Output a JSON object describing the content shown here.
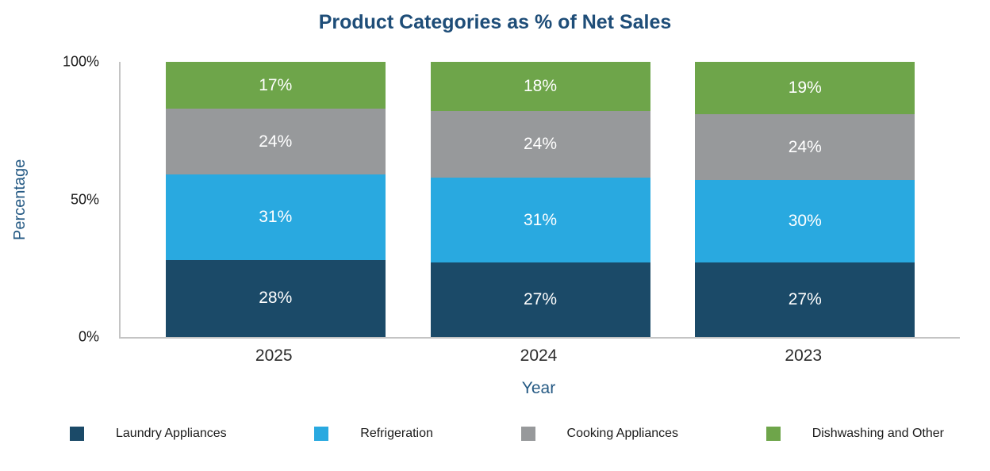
{
  "chart_data": {
    "type": "bar",
    "stacked": true,
    "title": "Product Categories as % of Net Sales",
    "xlabel": "Year",
    "ylabel": "Percentage",
    "categories": [
      "2025",
      "2024",
      "2023"
    ],
    "series": [
      {
        "name": "Laundry Appliances",
        "color": "#1b4a68",
        "values": [
          28,
          27,
          27
        ]
      },
      {
        "name": "Refrigeration",
        "color": "#29a9e0",
        "values": [
          31,
          31,
          30
        ]
      },
      {
        "name": "Cooking Appliances",
        "color": "#97999b",
        "values": [
          24,
          24,
          24
        ]
      },
      {
        "name": "Dishwashing and Other",
        "color": "#6ea54a",
        "values": [
          17,
          18,
          19
        ]
      }
    ],
    "y_ticks": [
      {
        "label": "100%",
        "value": 100
      },
      {
        "label": "50%",
        "value": 50
      },
      {
        "label": "0%",
        "value": 0
      }
    ],
    "ylim": [
      0,
      100
    ],
    "grid": false,
    "legend_position": "bottom",
    "colors": {
      "title": "#1e4d78",
      "axis_label": "#255a84",
      "axis_line": "#c4c4c4",
      "segment_label": "#ffffff"
    }
  }
}
